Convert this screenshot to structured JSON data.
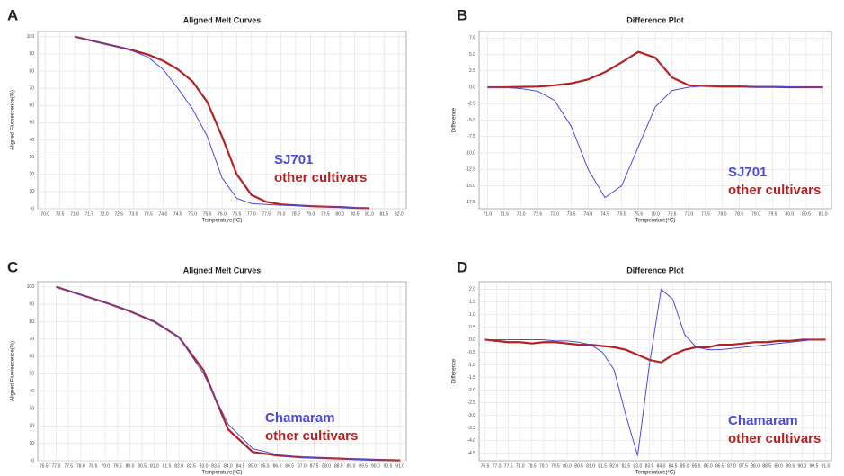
{
  "chart_data": [
    {
      "type": "line",
      "label": "A",
      "title": "Aligned Melt Curves",
      "x_label": "Temperature(°C)",
      "y_label": "Aligned Fluorescence(%)",
      "x": [
        71,
        71.5,
        72,
        72.5,
        73,
        73.5,
        74,
        74.5,
        75,
        75.5,
        76,
        76.5,
        77,
        77.5,
        78,
        78.5,
        79,
        79.5,
        80,
        80.5,
        81
      ],
      "series": [
        {
          "name": "SJ701",
          "color": "#4b4bdc",
          "values": [
            100,
            98,
            96,
            94,
            91.5,
            88,
            81,
            70,
            58,
            42,
            18,
            6,
            3,
            2.5,
            2,
            1.8,
            1.5,
            1.2,
            1,
            0.5,
            0.3
          ]
        },
        {
          "name": "other cultivars",
          "color": "#b22222",
          "values": [
            100,
            98,
            96,
            94,
            92,
            89.5,
            86,
            81,
            74,
            62,
            42,
            20,
            8,
            4,
            2.5,
            2,
            1.5,
            1.2,
            1,
            0.5,
            0.3
          ]
        }
      ],
      "xlim": [
        69.75,
        82.25
      ],
      "ylim": [
        0,
        103
      ],
      "xticks": [
        {
          "value": 70,
          "label": "70.0"
        },
        70.5,
        {
          "value": 71,
          "label": "71.0"
        },
        71.5,
        {
          "value": 72,
          "label": "72.0"
        },
        72.5,
        {
          "value": 73,
          "label": "73.0"
        },
        73.5,
        {
          "value": 74,
          "label": "74.0"
        },
        74.5,
        {
          "value": 75,
          "label": "75.0"
        },
        75.5,
        {
          "value": 76,
          "label": "76.0"
        },
        76.5,
        {
          "value": 77,
          "label": "77.0"
        },
        77.5,
        {
          "value": 78,
          "label": "78.0"
        },
        78.5,
        {
          "value": 79,
          "label": "79.0"
        },
        79.5,
        {
          "value": 80,
          "label": "80.0"
        },
        80.5,
        {
          "value": 81,
          "label": "81.0"
        },
        81.5,
        {
          "value": 82,
          "label": "82.0"
        }
      ],
      "yticks": [
        0,
        10,
        20,
        30,
        40,
        50,
        60,
        70,
        80,
        90,
        100
      ],
      "grid": true
    },
    {
      "type": "line",
      "label": "B",
      "title": "Difference Plot",
      "x_label": "Temperature(°C)",
      "y_label": "Difference",
      "x": [
        71,
        71.5,
        72,
        72.5,
        73,
        73.5,
        74,
        74.5,
        75,
        75.5,
        76,
        76.5,
        77,
        77.5,
        78,
        78.5,
        79,
        79.5,
        80,
        80.5,
        81
      ],
      "series": [
        {
          "name": "SJ701",
          "color": "#4b4bdc",
          "values": [
            0,
            -0.05,
            -0.2,
            -0.6,
            -2,
            -6,
            -12.5,
            -16.8,
            -15,
            -9,
            -3,
            -0.5,
            0,
            0.2,
            0.2,
            0.2,
            0.1,
            0.1,
            0.05,
            0,
            0
          ]
        },
        {
          "name": "other cultivars",
          "color": "#b22222",
          "values": [
            0,
            0,
            0.05,
            0.1,
            0.3,
            0.6,
            1.2,
            2.3,
            3.8,
            5.4,
            4.5,
            1.5,
            0.3,
            0.2,
            0.1,
            0.1,
            0.05,
            0.05,
            0,
            0,
            0
          ]
        }
      ],
      "xlim": [
        70.75,
        81.25
      ],
      "ylim": [
        -18.5,
        8.5
      ],
      "xticks": [
        {
          "value": 71,
          "label": "71.0"
        },
        71.5,
        {
          "value": 72,
          "label": "72.0"
        },
        72.5,
        {
          "value": 73,
          "label": "73.0"
        },
        73.5,
        {
          "value": 74,
          "label": "74.0"
        },
        74.5,
        {
          "value": 75,
          "label": "75.0"
        },
        75.5,
        {
          "value": 76,
          "label": "76.0"
        },
        76.5,
        {
          "value": 77,
          "label": "77.0"
        },
        77.5,
        {
          "value": 78,
          "label": "78.0"
        },
        78.5,
        {
          "value": 79,
          "label": "79.0"
        },
        79.5,
        {
          "value": 80,
          "label": "80.0"
        },
        80.5,
        {
          "value": 81,
          "label": "81.0"
        }
      ],
      "yticks": [
        7.5,
        {
          "value": 5,
          "label": "5.0"
        },
        2.5,
        {
          "value": 0,
          "label": "0.0"
        },
        -2.5,
        {
          "value": -5,
          "label": "-5.0"
        },
        -7.5,
        {
          "value": -10,
          "label": "-10.0"
        },
        -12.5,
        {
          "value": -15,
          "label": "-15.0"
        },
        -17.5
      ],
      "grid": true
    },
    {
      "type": "line",
      "label": "C",
      "title": "Aligned Melt Curves",
      "x_label": "Temperature(°C)",
      "y_label": "Aligned Fluorescence(%)",
      "x": [
        77,
        78,
        79,
        80,
        81,
        82,
        83,
        84,
        85,
        86,
        87,
        88,
        89,
        90,
        91
      ],
      "series": [
        {
          "name": "Chamaram",
          "color": "#4b4bdc",
          "values": [
            100,
            95.5,
            91,
            86,
            80,
            71,
            50,
            21,
            7,
            3.5,
            2,
            1.5,
            1,
            0.5,
            0.2
          ]
        },
        {
          "name": "other cultivars",
          "color": "#b22222",
          "values": [
            100,
            95.5,
            91,
            86,
            80,
            71,
            52,
            18,
            5,
            3,
            2,
            1.5,
            1,
            0.5,
            0.2
          ]
        }
      ],
      "xlim": [
        76.25,
        91.25
      ],
      "ylim": [
        0,
        103
      ],
      "xticks": [
        76.5,
        {
          "value": 77,
          "label": "77.0"
        },
        77.5,
        {
          "value": 78,
          "label": "78.0"
        },
        78.5,
        {
          "value": 79,
          "label": "79.0"
        },
        79.5,
        {
          "value": 80,
          "label": "80.0"
        },
        80.5,
        {
          "value": 81,
          "label": "81.0"
        },
        81.5,
        {
          "value": 82,
          "label": "82.0"
        },
        82.5,
        {
          "value": 83,
          "label": "83.0"
        },
        83.5,
        {
          "value": 84,
          "label": "84.0"
        },
        84.5,
        {
          "value": 85,
          "label": "85.0"
        },
        85.5,
        {
          "value": 86,
          "label": "86.0"
        },
        86.5,
        {
          "value": 87,
          "label": "87.0"
        },
        87.5,
        {
          "value": 88,
          "label": "88.0"
        },
        88.5,
        {
          "value": 89,
          "label": "89.0"
        },
        89.5,
        {
          "value": 90,
          "label": "90.0"
        },
        90.5,
        {
          "value": 91,
          "label": "91.0"
        }
      ],
      "yticks": [
        0,
        10,
        20,
        30,
        40,
        50,
        60,
        70,
        80,
        90,
        100
      ],
      "grid": true
    },
    {
      "type": "line",
      "label": "D",
      "title": "Difference Plot",
      "x_label": "Temperature(°C)",
      "y_label": "Difference",
      "x": [
        76.5,
        77,
        77.5,
        78,
        78.5,
        79,
        79.5,
        80,
        80.5,
        81,
        81.5,
        82,
        82.5,
        83,
        83.5,
        84,
        84.5,
        85,
        85.5,
        86,
        86.5,
        87,
        87.5,
        88,
        88.5,
        89,
        89.5,
        90,
        90.5,
        91
      ],
      "series": [
        {
          "name": "Chamaram",
          "color": "#4b4bdc",
          "values": [
            0,
            0,
            0,
            0,
            0,
            0,
            -0.05,
            -0.05,
            -0.1,
            -0.2,
            -0.5,
            -1.2,
            -3,
            -4.6,
            -1,
            2,
            1.6,
            0.2,
            -0.3,
            -0.4,
            -0.4,
            -0.35,
            -0.3,
            -0.25,
            -0.2,
            -0.15,
            -0.1,
            -0.05,
            0,
            0
          ]
        },
        {
          "name": "other cultivars",
          "color": "#b22222",
          "values": [
            0,
            -0.05,
            -0.1,
            -0.1,
            -0.15,
            -0.1,
            -0.1,
            -0.15,
            -0.2,
            -0.2,
            -0.25,
            -0.3,
            -0.4,
            -0.6,
            -0.8,
            -0.9,
            -0.6,
            -0.4,
            -0.3,
            -0.3,
            -0.2,
            -0.2,
            -0.15,
            -0.1,
            -0.1,
            -0.05,
            -0.05,
            0,
            0,
            0
          ]
        }
      ],
      "xlim": [
        76.25,
        91.25
      ],
      "ylim": [
        -4.8,
        2.3
      ],
      "xticks": [
        76.5,
        {
          "value": 77,
          "label": "77.0"
        },
        77.5,
        {
          "value": 78,
          "label": "78.0"
        },
        78.5,
        {
          "value": 79,
          "label": "79.0"
        },
        79.5,
        {
          "value": 80,
          "label": "80.0"
        },
        80.5,
        {
          "value": 81,
          "label": "81.0"
        },
        81.5,
        {
          "value": 82,
          "label": "82.0"
        },
        82.5,
        {
          "value": 83,
          "label": "83.0"
        },
        83.5,
        {
          "value": 84,
          "label": "84.0"
        },
        84.5,
        {
          "value": 85,
          "label": "85.0"
        },
        85.5,
        {
          "value": 86,
          "label": "86.0"
        },
        86.5,
        {
          "value": 87,
          "label": "87.0"
        },
        87.5,
        {
          "value": 88,
          "label": "88.0"
        },
        88.5,
        {
          "value": 89,
          "label": "89.0"
        },
        89.5,
        {
          "value": 90,
          "label": "90.0"
        },
        90.5,
        {
          "value": 91,
          "label": "91.0"
        }
      ],
      "yticks": [
        {
          "value": 2,
          "label": "2.0"
        },
        1.5,
        {
          "value": 1,
          "label": "1.0"
        },
        0.5,
        {
          "value": 0,
          "label": "0.0"
        },
        -0.5,
        {
          "value": -1,
          "label": "-1.0"
        },
        -1.5,
        {
          "value": -2,
          "label": "-2.0"
        },
        -2.5,
        {
          "value": -3,
          "label": "-3.0"
        },
        -3.5,
        {
          "value": -4,
          "label": "-4.0"
        },
        -4.5
      ],
      "grid": true
    }
  ]
}
